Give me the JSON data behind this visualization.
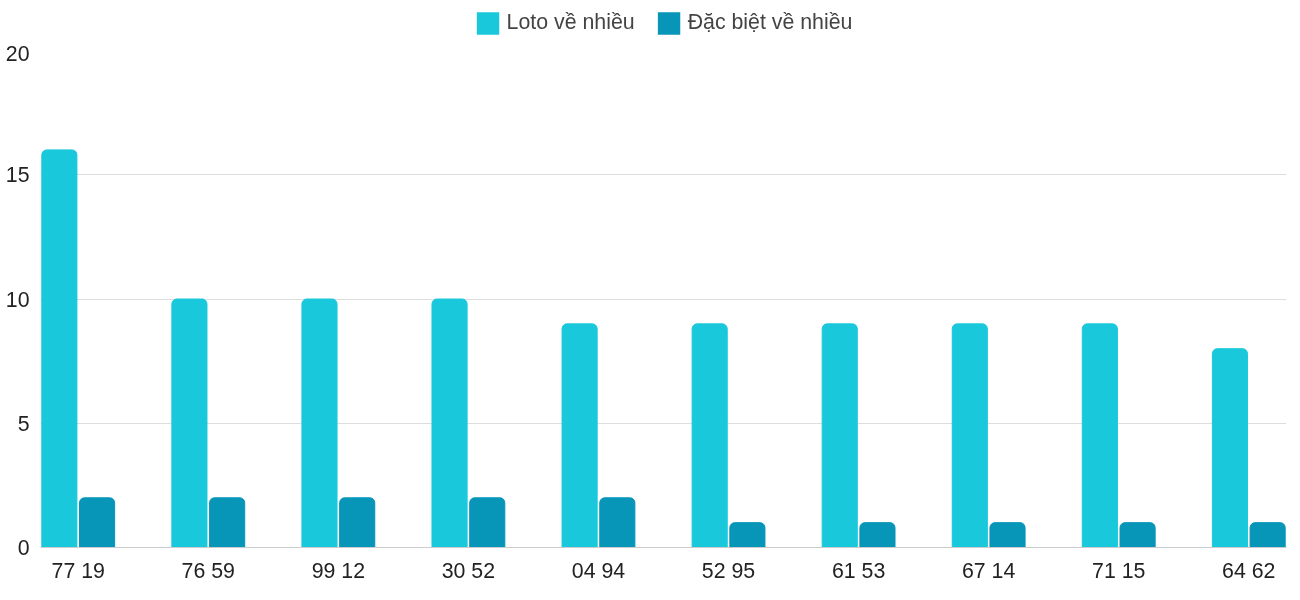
{
  "chart_data": {
    "type": "bar",
    "categories": [
      "77 19",
      "76 59",
      "99 12",
      "30 52",
      "04 94",
      "52 95",
      "61 53",
      "67 14",
      "71 15",
      "64 62"
    ],
    "series": [
      {
        "name": "Loto về nhiều",
        "color": "#1ac8db",
        "values": [
          16,
          10,
          10,
          10,
          9,
          9,
          9,
          9,
          9,
          8
        ]
      },
      {
        "name": "Đặc biệt về nhiều",
        "color": "#0795b8",
        "values": [
          2,
          2,
          2,
          2,
          2,
          1,
          1,
          1,
          1,
          1
        ]
      }
    ],
    "ylim": [
      0,
      20
    ],
    "yticks": [
      0,
      5,
      10,
      15,
      20
    ],
    "grid": "y",
    "legend": "top"
  }
}
